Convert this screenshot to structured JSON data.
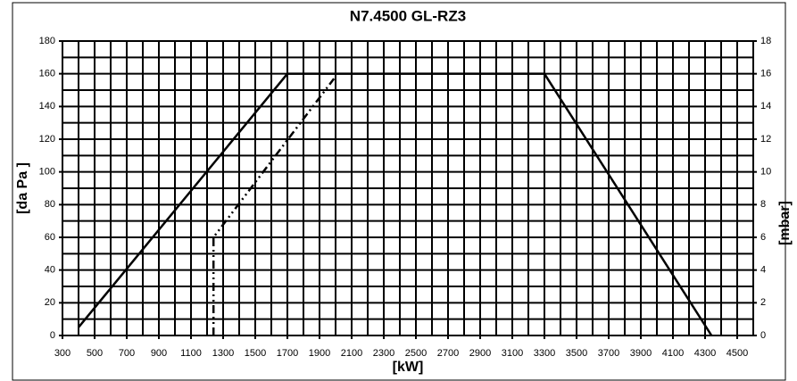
{
  "chart_data": {
    "type": "line",
    "title": "N7.4500 GL-RZ3",
    "x_label": "[kW]",
    "y_label": "[da Pa ]",
    "y2_label": "[mbar]",
    "xlim": [
      300,
      4600
    ],
    "xticks": [
      300,
      500,
      700,
      900,
      1100,
      1300,
      1500,
      1700,
      1900,
      2100,
      2300,
      2500,
      2700,
      2900,
      3100,
      3300,
      3500,
      3700,
      3900,
      4100,
      4300,
      4500
    ],
    "xminorticks": [
      400,
      600,
      800,
      1000,
      1200,
      1400,
      1600,
      1800,
      2000,
      2200,
      2400,
      2600,
      2800,
      3000,
      3200,
      3400,
      3600,
      3800,
      4000,
      4200,
      4400,
      4600
    ],
    "ylim": [
      0,
      180
    ],
    "yticks": [
      0,
      20,
      40,
      60,
      80,
      100,
      120,
      140,
      160,
      180
    ],
    "yminorticks": [
      10,
      30,
      50,
      70,
      90,
      110,
      130,
      150,
      170
    ],
    "y2lim": [
      0,
      18
    ],
    "y2ticks": [
      0,
      2,
      4,
      6,
      8,
      10,
      12,
      14,
      16,
      18
    ],
    "grid": true,
    "series": [
      {
        "color": "#000000",
        "line_style": "solid",
        "x": [
          400,
          1700,
          3300,
          4340
        ],
        "values": [
          5,
          160,
          160,
          0
        ]
      },
      {
        "color": "#000000",
        "line_style": "dashdot",
        "x": [
          1240,
          1240,
          1990
        ],
        "values": [
          0,
          60,
          157
        ]
      }
    ]
  }
}
